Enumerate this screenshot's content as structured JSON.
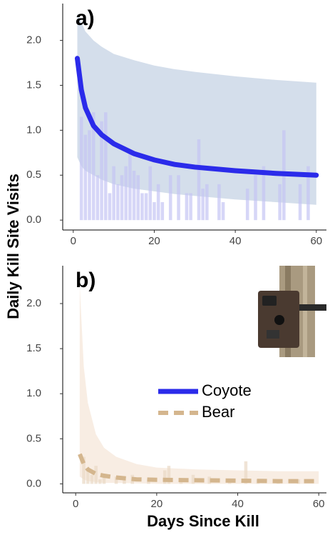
{
  "chart_data": [
    {
      "type": "line",
      "label": "a)",
      "ylabel": "Daily Kill Site Visits",
      "xlim": [
        -2.6,
        62.5
      ],
      "ylim": [
        -0.11,
        2.41
      ],
      "xticks": [
        0,
        20,
        40,
        60
      ],
      "yticks": [
        {
          "value": 0,
          "label": "0.0"
        },
        {
          "value": 0.5,
          "label": "0.5"
        },
        {
          "value": 1,
          "label": "1.0"
        },
        {
          "value": 1.5,
          "label": "1.5"
        },
        {
          "value": 2,
          "label": "2.0"
        }
      ],
      "series": [
        {
          "name": "Coyote",
          "color": "#2b2bea",
          "dashed": false,
          "band_color": "#c9d6e6",
          "bar_color": "#c4c4f4",
          "x": [
            1,
            2,
            3,
            5,
            7,
            10,
            15,
            20,
            25,
            30,
            40,
            50,
            60
          ],
          "values": [
            1.8,
            1.45,
            1.25,
            1.05,
            0.95,
            0.85,
            0.74,
            0.67,
            0.62,
            0.59,
            0.55,
            0.52,
            0.5
          ],
          "upper": [
            2.3,
            2.2,
            2.1,
            2.0,
            1.93,
            1.85,
            1.78,
            1.72,
            1.68,
            1.65,
            1.6,
            1.56,
            1.53
          ],
          "lower": [
            0.7,
            0.6,
            0.55,
            0.5,
            0.45,
            0.4,
            0.35,
            0.32,
            0.29,
            0.27,
            0.23,
            0.2,
            0.17
          ],
          "bar_x": [
            2,
            3,
            4,
            5,
            6,
            7,
            8,
            9,
            10,
            11,
            12,
            13,
            14,
            15,
            16,
            17,
            18,
            19,
            20,
            21,
            22,
            24,
            26,
            28,
            29,
            31,
            32,
            33,
            36,
            37,
            43,
            45,
            47,
            51,
            52,
            56,
            58
          ],
          "bar_values": [
            1.15,
            0.95,
            1.0,
            1.2,
            0.5,
            1.1,
            1.2,
            0.3,
            0.6,
            0.4,
            0.5,
            0.6,
            0.75,
            0.55,
            0.5,
            0.3,
            0.3,
            0.6,
            0.2,
            0.4,
            0.2,
            0.5,
            0.5,
            0.3,
            0.3,
            0.9,
            0.35,
            0.4,
            0.4,
            0.2,
            0.35,
            0.5,
            0.6,
            0.4,
            1.0,
            0.4,
            0.6
          ]
        }
      ]
    },
    {
      "type": "line",
      "label": "b)",
      "xlabel": "Days Since Kill",
      "legend": "right",
      "xlim": [
        -3.2,
        61.9
      ],
      "ylim": [
        -0.1,
        2.42
      ],
      "xticks": [
        0,
        20,
        40,
        60
      ],
      "yticks": [
        {
          "value": 0,
          "label": "0.0"
        },
        {
          "value": 0.5,
          "label": "0.5"
        },
        {
          "value": 1,
          "label": "1.0"
        },
        {
          "value": 1.5,
          "label": "1.5"
        },
        {
          "value": 2,
          "label": "2.0"
        }
      ],
      "series": [
        {
          "name": "Bear",
          "color": "#d4b68e",
          "dashed": true,
          "band_color": "#f6e9dc",
          "bar_color": "#ead8c4",
          "x": [
            1,
            2,
            3,
            5,
            7,
            10,
            15,
            20,
            30,
            40,
            50,
            60
          ],
          "values": [
            0.33,
            0.22,
            0.16,
            0.11,
            0.09,
            0.07,
            0.05,
            0.045,
            0.04,
            0.035,
            0.03,
            0.03
          ],
          "upper": [
            2.2,
            1.3,
            0.9,
            0.55,
            0.4,
            0.3,
            0.22,
            0.18,
            0.16,
            0.15,
            0.14,
            0.14
          ],
          "lower": [
            0.08,
            0.05,
            0.03,
            0.02,
            0.01,
            0.01,
            0.005,
            0,
            0,
            0,
            0,
            0
          ],
          "bar_x": [
            2,
            3,
            4,
            5,
            6,
            7,
            10,
            12,
            14,
            18,
            22,
            23,
            26,
            29,
            33,
            38,
            42,
            45,
            50,
            55
          ],
          "bar_values": [
            0.3,
            0.15,
            0.1,
            0.2,
            0.05,
            0.1,
            0.08,
            0.05,
            0.1,
            0.05,
            0.15,
            0.2,
            0.05,
            0.1,
            0.08,
            0.05,
            0.25,
            0.05,
            0.05,
            0.05
          ]
        }
      ]
    }
  ]
}
